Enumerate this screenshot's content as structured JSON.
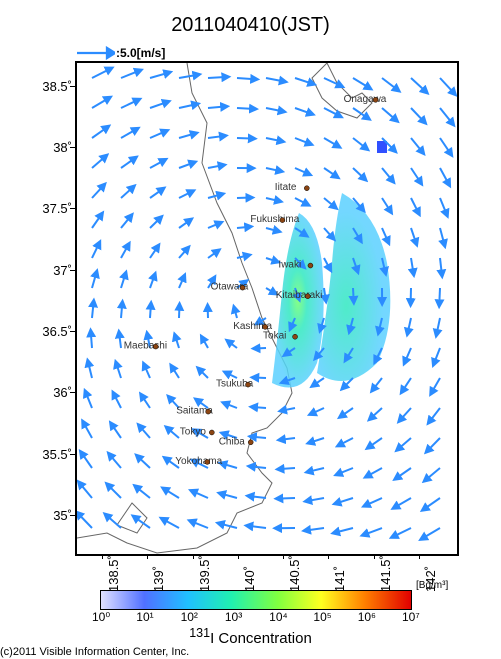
{
  "title": "2011040410(JST)",
  "scale_arrow_label": ":5.0[m/s]",
  "xlabel": "",
  "ylabel": "",
  "colorbar_label_html": "<sup>131</sup>I Concentration",
  "colorbar_unit": "[Bq/m³]",
  "copyright": "(c)2011 Visible Information Center, Inc.",
  "lat_range": [
    34.7,
    38.7
  ],
  "lon_range": [
    138.2,
    142.4
  ],
  "yticks": [
    35.0,
    35.5,
    36.0,
    36.5,
    37.0,
    37.5,
    38.0,
    38.5
  ],
  "ytick_labels": [
    "35˚",
    "35.5˚",
    "36˚",
    "36.5˚",
    "37˚",
    "37.5˚",
    "38˚",
    "38.5˚"
  ],
  "xticks": [
    138.5,
    139.0,
    139.5,
    140.0,
    140.5,
    141.0,
    141.5,
    142.0
  ],
  "xtick_labels": [
    "138.5˚",
    "139˚",
    "139.5˚",
    "140˚",
    "140.5˚",
    "141˚",
    "141.5˚",
    "142˚"
  ],
  "colorbar_ticks": [
    "10⁰",
    "10¹",
    "10²",
    "10³",
    "10⁴",
    "10⁵",
    "10⁶",
    "10⁷"
  ],
  "colorbar_stops": [
    {
      "o": 0.0,
      "c": "#e0e0ff"
    },
    {
      "o": 0.14,
      "c": "#5070ff"
    },
    {
      "o": 0.28,
      "c": "#20c0ff"
    },
    {
      "o": 0.42,
      "c": "#20f0b0"
    },
    {
      "o": 0.57,
      "c": "#80ff40"
    },
    {
      "o": 0.71,
      "c": "#ffff20"
    },
    {
      "o": 0.85,
      "c": "#ff8000"
    },
    {
      "o": 1.0,
      "c": "#e00000"
    }
  ],
  "arrow_color": "#2b8cff",
  "cities": [
    {
      "name": "Onagawa",
      "lon": 141.5,
      "lat": 38.4
    },
    {
      "name": "Iitate",
      "lon": 140.74,
      "lat": 37.68
    },
    {
      "name": "Fukushima",
      "lon": 140.47,
      "lat": 37.42
    },
    {
      "name": "Iwaki",
      "lon": 140.78,
      "lat": 37.05
    },
    {
      "name": "Otawara",
      "lon": 140.03,
      "lat": 36.87
    },
    {
      "name": "Kitaibaraki",
      "lon": 140.75,
      "lat": 36.8
    },
    {
      "name": "Kashima",
      "lon": 140.28,
      "lat": 36.55
    },
    {
      "name": "Tokai",
      "lon": 140.61,
      "lat": 36.47
    },
    {
      "name": "Maebashi",
      "lon": 139.07,
      "lat": 36.39
    },
    {
      "name": "Tsukuba",
      "lon": 140.09,
      "lat": 36.08
    },
    {
      "name": "Saitama",
      "lon": 139.65,
      "lat": 35.86
    },
    {
      "name": "Tokyo",
      "lon": 139.69,
      "lat": 35.69
    },
    {
      "name": "Chiba",
      "lon": 140.12,
      "lat": 35.61
    },
    {
      "name": "Yokohama",
      "lon": 139.64,
      "lat": 35.45
    }
  ],
  "wind_field_desc": "cyclonic pattern — NW flow upper-left, S-SE flow center, E-NE flow lower-right",
  "plume_colors": {
    "outer": "#5ad0ff",
    "mid": "#30e8c0",
    "inner": "#60ff80"
  }
}
